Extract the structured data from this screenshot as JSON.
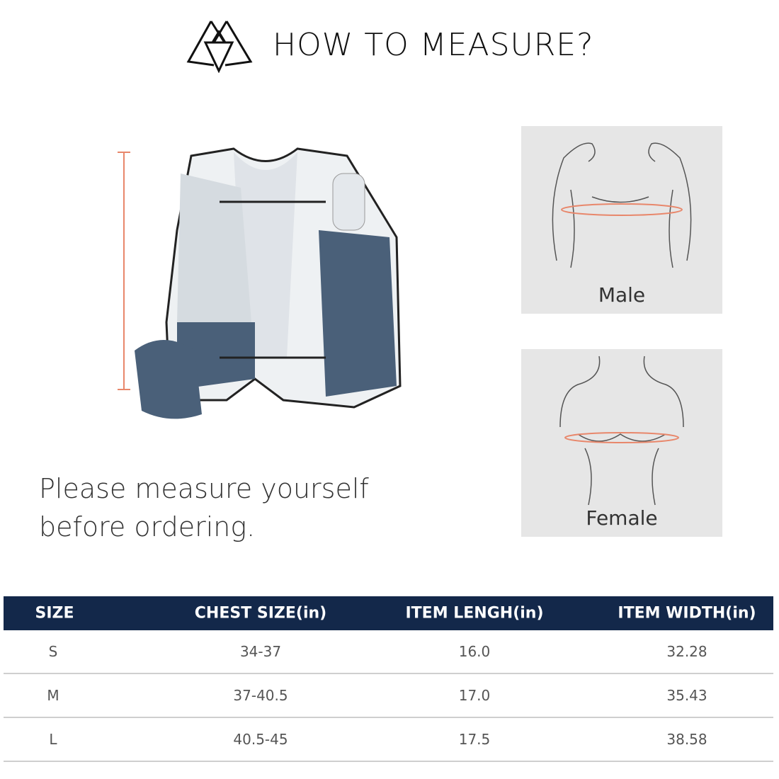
{
  "header": {
    "title": "HOW TO MEASURE?",
    "logo": "triangle-mountain-logo"
  },
  "figures": {
    "male_label": "Male",
    "female_label": "Female",
    "measure_color": "#e8876b"
  },
  "message": {
    "line1": "Please measure yourself",
    "line2": "before ordering."
  },
  "size_table": {
    "header_color": "#13284a",
    "columns": [
      "SIZE",
      "CHEST SIZE(in)",
      "ITEM LENGH(in)",
      "ITEM WIDTH(in)"
    ],
    "rows": [
      [
        "S",
        "34-37",
        "16.0",
        "32.28"
      ],
      [
        "M",
        "37-40.5",
        "17.0",
        "35.43"
      ],
      [
        "L",
        "40.5-45",
        "17.5",
        "38.58"
      ]
    ]
  }
}
